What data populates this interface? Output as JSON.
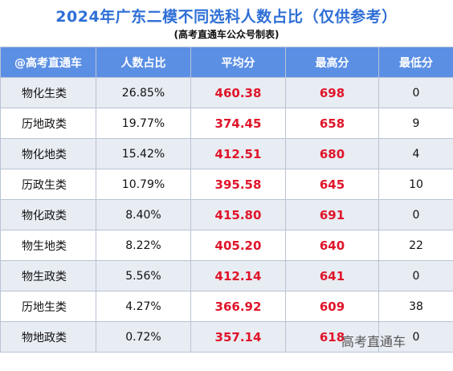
{
  "title": "2024年广东二模不同选科人数占比（仅供参考）",
  "subtitle": "(高考直通车公众号制表)",
  "headers": [
    "@高考直通车",
    "人数占比",
    "平均分",
    "最高分",
    "最低分"
  ],
  "rows": [
    {
      "combo": "物化生类",
      "ratio": "26.85%",
      "avg": "460.38",
      "max": "698",
      "min": "0"
    },
    {
      "combo": "历地政类",
      "ratio": "19.77%",
      "avg": "374.45",
      "max": "658",
      "min": "9"
    },
    {
      "combo": "物化地类",
      "ratio": "15.42%",
      "avg": "412.51",
      "max": "680",
      "min": "4"
    },
    {
      "combo": "历政生类",
      "ratio": "10.79%",
      "avg": "395.58",
      "max": "645",
      "min": "10"
    },
    {
      "combo": "物化政类",
      "ratio": "8.40%",
      "avg": "415.80",
      "max": "691",
      "min": "0"
    },
    {
      "combo": "物生地类",
      "ratio": "8.22%",
      "avg": "405.20",
      "max": "640",
      "min": "22"
    },
    {
      "combo": "物生政类",
      "ratio": "5.56%",
      "avg": "412.14",
      "max": "641",
      "min": "0"
    },
    {
      "combo": "历地生类",
      "ratio": "4.27%",
      "avg": "366.92",
      "max": "609",
      "min": "38"
    },
    {
      "combo": "物地政类",
      "ratio": "0.72%",
      "avg": "357.14",
      "max": "618",
      "min": "0"
    }
  ],
  "watermark": "高考直通车"
}
